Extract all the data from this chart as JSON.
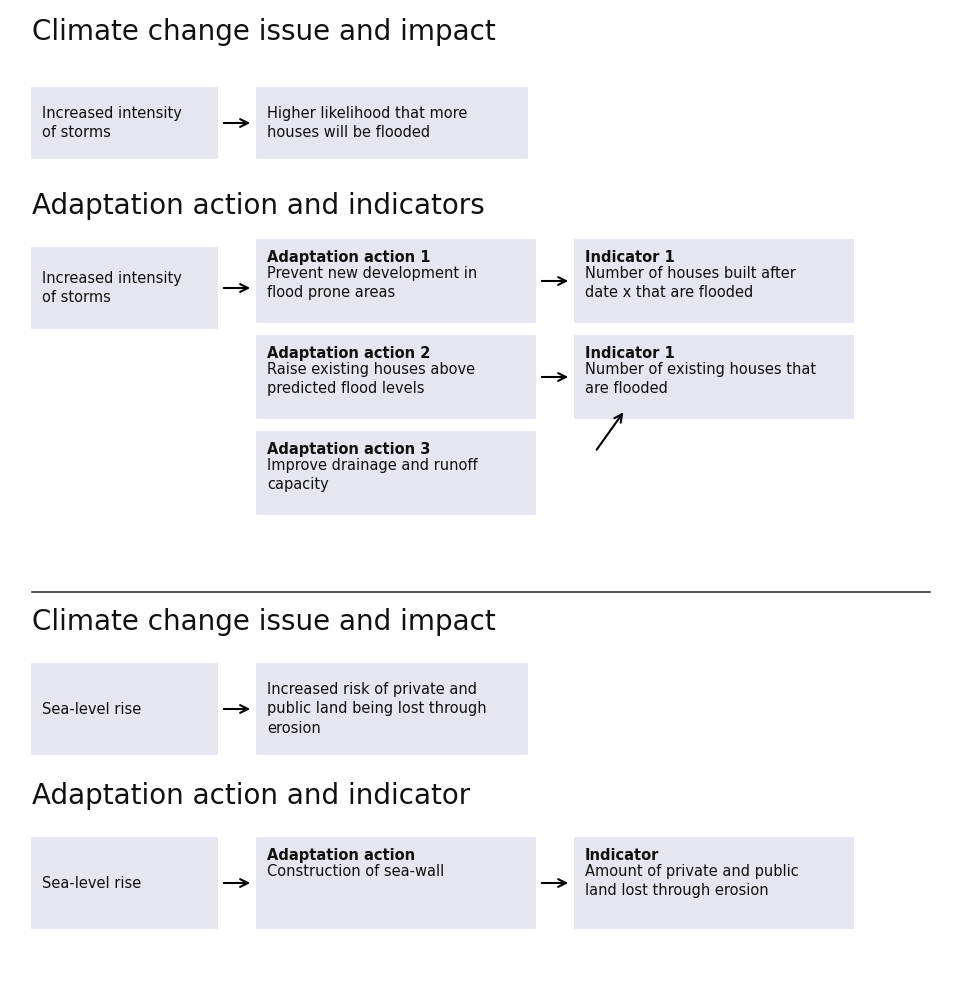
{
  "bg_color": "#ffffff",
  "box_color": "#e6e6f0",
  "heading_fontsize": 20,
  "body_fontsize": 10.5,
  "section1_title": "Climate change issue and impact",
  "section2_title": "Adaptation action and indicators",
  "section3_title": "Climate change issue and impact",
  "section4_title": "Adaptation action and indicator",
  "s1_box1_text": "Increased intensity\nof storms",
  "s1_box2_text": "Higher likelihood that more\nhouses will be flooded",
  "s2_box1_text": "Increased intensity\nof storms",
  "s2_box2_title": "Adaptation action 1",
  "s2_box2_body": "Prevent new development in\nflood prone areas",
  "s2_box3_title": "Indicator 1",
  "s2_box3_body": "Number of houses built after\ndate x that are flooded",
  "s2_box4_title": "Adaptation action 2",
  "s2_box4_body": "Raise existing houses above\npredicted flood levels",
  "s2_box5_title": "Indicator 1",
  "s2_box5_body": "Number of existing houses that\nare flooded",
  "s2_box6_title": "Adaptation action 3",
  "s2_box6_body": "Improve drainage and runoff\ncapacity",
  "s3_box1_text": "Sea-level rise",
  "s3_box2_text": "Increased risk of private and\npublic land being lost through\nerosion",
  "s4_box1_text": "Sea-level rise",
  "s4_box2_title": "Adaptation action",
  "s4_box2_body": "Construction of sea-wall",
  "s4_box3_title": "Indicator",
  "s4_box3_body": "Amount of private and public\nland lost through erosion"
}
